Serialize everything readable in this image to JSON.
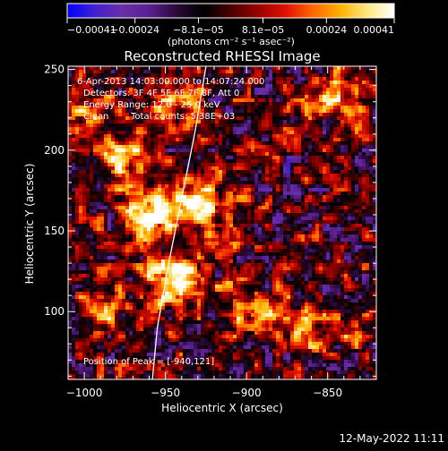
{
  "chart_data": {
    "type": "heatmap",
    "title": "Reconstructed RHESSI Image",
    "xlabel": "Heliocentric X (arcsec)",
    "ylabel": "Heliocentric Y (arcsec)",
    "xlim": [
      -1010,
      -820
    ],
    "ylim": [
      58,
      252
    ],
    "xticks": [
      -1000,
      -950,
      -900,
      -850
    ],
    "xtick_labels": [
      "−1000",
      "−950",
      "−900",
      "−850"
    ],
    "yticks": [
      100,
      150,
      200,
      250
    ],
    "ytick_labels": [
      "100",
      "150",
      "200",
      "250"
    ],
    "colorbar": {
      "range": [
        -0.00041,
        0.00041
      ],
      "ticks": [
        -0.00041,
        -0.00024,
        -8.1e-05,
        8.1e-05,
        0.00024,
        0.00041
      ],
      "tick_labels": [
        "−0.00041",
        "−0.00024",
        "−8.1e−05",
        "8.1e−05",
        "0.00024",
        "0.00041"
      ],
      "unit_label": "(photons cm⁻² s⁻¹ asec⁻²)",
      "colormap": [
        "#0000ff",
        "#4020d0",
        "#6a2ea8",
        "#5a2090",
        "#2a0a38",
        "#000000",
        "#4a0000",
        "#9a0000",
        "#e01000",
        "#ff6600",
        "#ffb000",
        "#ffe880",
        "#ffffff"
      ]
    },
    "annotations": [
      "6-Apr-2013 14:03:00.000 to 14:07:24.000",
      "Detectors: 3F 4F 5F 6F 7F 8F, Att 0",
      "Energy Range: 12.0 - 25.0 keV",
      "Clean",
      "Total counts: 5.38E+03"
    ],
    "peak": {
      "label": "Position of Peak = [-940,121]",
      "x": -940,
      "y": 121
    },
    "limb_curve": [
      [
        -958,
        58
      ],
      [
        -955,
        90
      ],
      [
        -948,
        130
      ],
      [
        -940,
        170
      ],
      [
        -932,
        210
      ],
      [
        -925,
        252
      ]
    ],
    "sources": [
      {
        "x": -943,
        "y": 120,
        "strength": 1.0
      },
      {
        "x": -960,
        "y": 158,
        "strength": 0.75
      },
      {
        "x": -930,
        "y": 165,
        "strength": 0.7
      },
      {
        "x": -975,
        "y": 195,
        "strength": 0.6
      },
      {
        "x": -945,
        "y": 230,
        "strength": 0.45
      },
      {
        "x": -1000,
        "y": 225,
        "strength": 0.5
      },
      {
        "x": -840,
        "y": 235,
        "strength": 0.55
      },
      {
        "x": -860,
        "y": 85,
        "strength": 0.5
      },
      {
        "x": -990,
        "y": 100,
        "strength": 0.45
      },
      {
        "x": -900,
        "y": 105,
        "strength": 0.4
      }
    ]
  },
  "footer": {
    "date": "12-May-2022 11:11"
  }
}
